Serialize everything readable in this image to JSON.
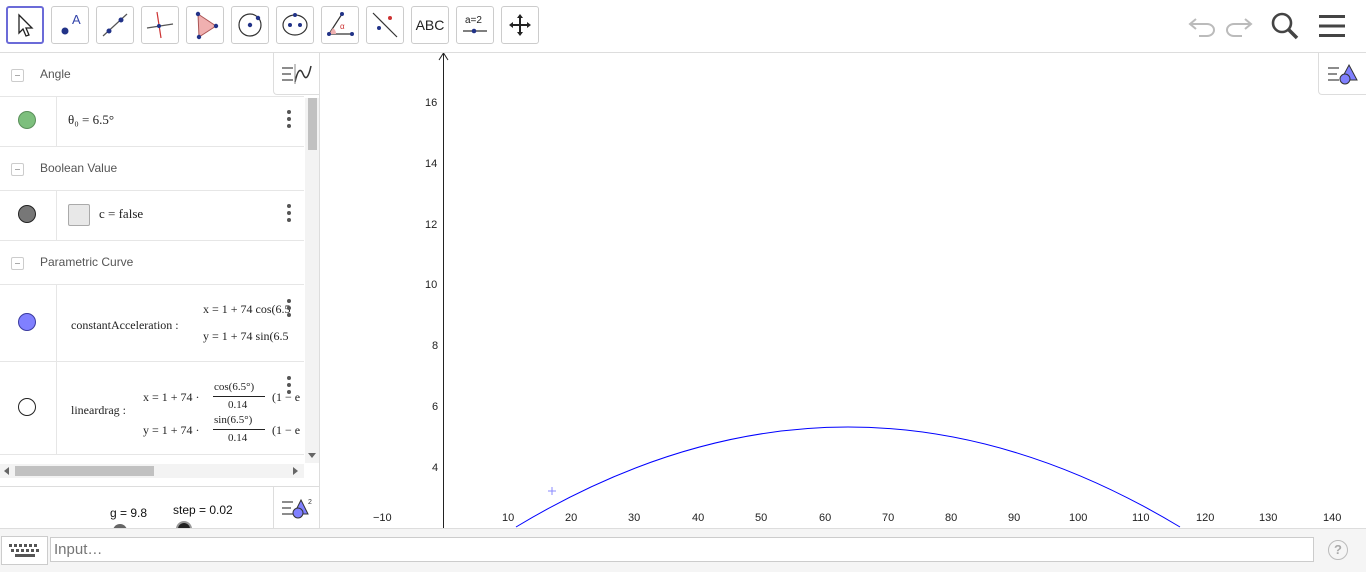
{
  "toolbar": {
    "tools": [
      "Move",
      "Point",
      "Line",
      "Perpendicular Line",
      "Polygon",
      "Circle with Center",
      "Ellipse",
      "Angle",
      "Reflect about Line",
      "Text",
      "Slider",
      "Move Graphics View"
    ],
    "text_tool_label": "ABC",
    "slider_tool_label": "a = 2"
  },
  "algebra": {
    "sections": [
      {
        "title": "Angle"
      },
      {
        "title": "Boolean Value"
      },
      {
        "title": "Parametric Curve"
      }
    ],
    "theta": {
      "name": "θ₀",
      "value": "θ₀ = 6.5°",
      "color": "#7dbf7d"
    },
    "boolean": {
      "value": "c = false",
      "color": "#777777"
    },
    "curve1": {
      "name": "constantAcceleration :",
      "x": "x = 1 + 74  cos(6.5",
      "y": "y = 1 + 74  sin(6.5",
      "color": "#8080ff"
    },
    "curve2": {
      "name": "lineardrag :",
      "x_pre": "x = 1 + 74 ·",
      "x_num": "cos(6.5°)",
      "x_den": "0.14",
      "x_post": "(1 − e",
      "y_pre": "y = 1 + 74 ·",
      "y_num": "sin(6.5°)",
      "y_den": "0.14",
      "y_post": "(1 − e",
      "color": "#ffffff"
    }
  },
  "sliders": {
    "g_label": "g = 9.8",
    "step_label": "step = 0.02"
  },
  "graphics": {
    "x_ticks": [
      "−10",
      "10",
      "20",
      "30",
      "40",
      "50",
      "60",
      "70",
      "80",
      "90",
      "100",
      "110",
      "120",
      "130",
      "140"
    ],
    "y_ticks": [
      "4",
      "6",
      "8",
      "10",
      "12",
      "14",
      "16"
    ],
    "curve_color": "#0000ff"
  },
  "input": {
    "placeholder": "Input…"
  }
}
